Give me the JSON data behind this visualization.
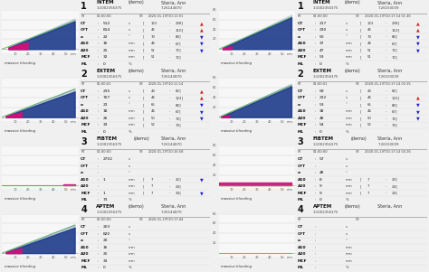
{
  "left_panels": [
    {
      "number": "1",
      "test": "INTEM",
      "type": "(demo)",
      "id": "1:1002356375",
      "name": "Steria, Ann",
      "name_id": "7.26144870",
      "rt": "01:00:00",
      "st": "2020-01-19T10:11:01",
      "label": "massive bleeding",
      "trace_type": "intem_left",
      "rows": [
        [
          "CT",
          "512",
          "s",
          "122",
          "208",
          "up"
        ],
        [
          "CFT",
          "814",
          "s",
          "45",
          "110",
          "up"
        ],
        [
          "a",
          "22",
          "o",
          "70",
          "80",
          "dn"
        ],
        [
          "A10",
          "16",
          "mm",
          "46",
          "67",
          "dn"
        ],
        [
          "A20",
          "25",
          "mm",
          "51",
          "72",
          "dn"
        ],
        [
          "MCF",
          "32",
          "mm",
          "51",
          "72",
          ""
        ],
        [
          "ML",
          "0",
          "%",
          "",
          "",
          ""
        ]
      ]
    },
    {
      "number": "2",
      "test": "EXTEM",
      "type": "(demo)",
      "id": "1:1002356375",
      "name": "Steria, Ann",
      "name_id": "7.26144870",
      "rt": "01:00:01",
      "st": "2020-01-19T10:11:14",
      "label": "massive bleeding",
      "trace_type": "extem_left",
      "rows": [
        [
          "CT",
          "235",
          "s",
          "43",
          "82",
          "up"
        ],
        [
          "CFT",
          "707",
          "s",
          "46",
          "122",
          "up"
        ],
        [
          "a",
          "23",
          "o",
          "65",
          "80",
          "dn"
        ],
        [
          "A10",
          "18",
          "mm",
          "46",
          "67",
          "dn"
        ],
        [
          "A20",
          "26",
          "mm",
          "50",
          "70",
          "dn"
        ],
        [
          "MCF",
          "33",
          "mm",
          "52",
          "70",
          ""
        ],
        [
          "ML",
          "0",
          "%",
          "",
          "",
          ""
        ]
      ]
    },
    {
      "number": "3",
      "test": "FIBTEM",
      "type": "(demo)",
      "id": "1:1002356375",
      "name": "Steria, Ann",
      "name_id": "7.26144870",
      "rt": "01:00:00",
      "st": "2020-01-19T10:16:58",
      "label": "massive bleeding",
      "trace_type": "fibtem_left",
      "rows": [
        [
          "CT",
          "2702",
          "s",
          "",
          "",
          ""
        ],
        [
          "CFT",
          "",
          "s",
          "",
          "",
          ""
        ],
        [
          "a",
          "",
          "o",
          "",
          "",
          ""
        ],
        [
          "A10",
          "1",
          "mm",
          "7",
          "22",
          "dn"
        ],
        [
          "A20",
          "",
          "mm",
          "7",
          "24",
          ""
        ],
        [
          "MCF",
          "1",
          "mm",
          "7",
          "24",
          "dn"
        ],
        [
          "ML",
          "73",
          "%",
          "",
          "",
          ""
        ]
      ]
    },
    {
      "number": "4",
      "test": "APTEM",
      "type": "(demo)",
      "id": "1:1002356375",
      "name": "Steria, Ann",
      "name_id": "7.26144870",
      "rt": "01:00:00",
      "st": "2020-01-19T10:17:44",
      "label": "massive bleeding",
      "trace_type": "aptem_left",
      "rows": [
        [
          "CT",
          "203",
          "s",
          "",
          "",
          ""
        ],
        [
          "CFT",
          "820",
          "s",
          "",
          "",
          ""
        ],
        [
          "a",
          "20",
          "o",
          "",
          "",
          ""
        ],
        [
          "A10",
          "16",
          "mm",
          "",
          "",
          ""
        ],
        [
          "A20",
          "25",
          "mm",
          "",
          "",
          ""
        ],
        [
          "MCF",
          "33",
          "mm",
          "",
          "",
          ""
        ],
        [
          "ML",
          "0",
          "%",
          "",
          "",
          ""
        ]
      ]
    }
  ],
  "right_panels": [
    {
      "number": "1",
      "test": "INTEM",
      "type": "(demo)",
      "id": "1:1002356375",
      "name": "Steria, Ann",
      "name_id": "7.26150009",
      "rt": "01:00:00",
      "st": "2020-01-19T10:17:14 01 46",
      "label": "massive bleeding",
      "trace_type": "intem_right",
      "rows": [
        [
          "CT",
          "217",
          "s",
          "122",
          "208",
          "up"
        ],
        [
          "CFT",
          "230",
          "s",
          "45",
          "110",
          "up"
        ],
        [
          "a",
          "50",
          "o",
          "70",
          "80",
          "dn"
        ],
        [
          "A10",
          "37",
          "mm",
          "46",
          "67",
          "dn"
        ],
        [
          "A20",
          "47",
          "mm",
          "51",
          "72",
          "dn"
        ],
        [
          "MCF",
          "53",
          "mm",
          "51",
          "72",
          ""
        ],
        [
          "ML",
          "0",
          "%",
          "",
          "",
          ""
        ]
      ]
    },
    {
      "number": "2",
      "test": "EXTEM",
      "type": "(demo)",
      "id": "1:1002356375",
      "name": "Steria, Ann",
      "name_id": "7.26150009",
      "rt": "01:00:01",
      "st": "2020-01-19T10:17:14 03 25",
      "label": "massive bleeding",
      "trace_type": "extem_right",
      "rows": [
        [
          "CT",
          "59",
          "s",
          "43",
          "82",
          ""
        ],
        [
          "CFT",
          "232",
          "s",
          "46",
          "122",
          "up"
        ],
        [
          "a",
          "53",
          "o",
          "65",
          "80",
          "dn"
        ],
        [
          "A10",
          "38",
          "mm",
          "46",
          "67",
          "dn"
        ],
        [
          "A20",
          "48",
          "mm",
          "50",
          "70",
          "dn"
        ],
        [
          "MCF",
          "54",
          "mm",
          "52",
          "70",
          ""
        ],
        [
          "ML",
          "0",
          "%",
          "",
          "",
          ""
        ]
      ]
    },
    {
      "number": "3",
      "test": "FIBTEM",
      "type": "(demo)",
      "id": "1:1002356375",
      "name": "Steria, Ann",
      "name_id": "7.26150009",
      "rt": "01:00:00",
      "st": "2020-01-19T10:17:14 04 26",
      "label": "massive bleeding",
      "trace_type": "fibtem_right",
      "rows": [
        [
          "CT",
          "57",
          "s",
          "",
          "",
          ""
        ],
        [
          "CFT",
          "",
          "s",
          "",
          "",
          ""
        ],
        [
          "a",
          "48",
          "o",
          "",
          "",
          ""
        ],
        [
          "A10",
          "8",
          "mm",
          "7",
          "23",
          ""
        ],
        [
          "A20",
          "9",
          "mm",
          "7",
          "24",
          ""
        ],
        [
          "MCF",
          "9",
          "mm",
          "7",
          "24",
          ""
        ],
        [
          "ML",
          "0",
          "%",
          "",
          "",
          ""
        ]
      ]
    },
    {
      "number": "4",
      "test": "APTEM",
      "type": "(demo)",
      "id": "1:1002356375",
      "name": "Steria, Ann",
      "name_id": "",
      "rt": "",
      "st": "",
      "label": "massive bleeding",
      "trace_type": "aptem_right",
      "rows": [
        [
          "CT",
          "",
          "s",
          "",
          "",
          ""
        ],
        [
          "CFT",
          "",
          "s",
          "",
          "",
          ""
        ],
        [
          "a",
          "",
          "o",
          "",
          "",
          ""
        ],
        [
          "A10",
          "",
          "mm",
          "",
          "",
          ""
        ],
        [
          "A20",
          "",
          "mm",
          "",
          "",
          ""
        ],
        [
          "MCF",
          "",
          "mm",
          "",
          "",
          ""
        ],
        [
          "ML",
          "",
          "%",
          "",
          "",
          ""
        ]
      ]
    }
  ],
  "blue": "#1e3b8a",
  "magenta": "#cc1177",
  "green": "#44aa44",
  "panel_bg": "#f0f0f0",
  "white": "#ffffff",
  "border": "#aaaaaa",
  "text_dark": "#111111",
  "text_mid": "#333333"
}
